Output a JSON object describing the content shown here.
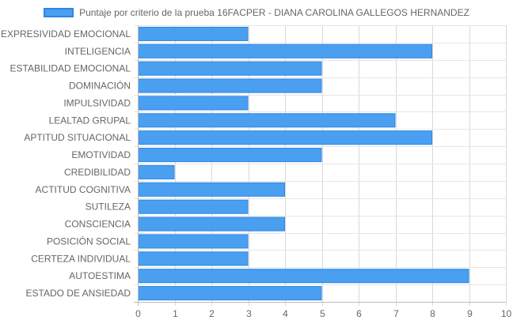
{
  "chart_data": {
    "type": "bar",
    "orientation": "horizontal",
    "categories": [
      "EXPRESIVIDAD EMOCIONAL",
      "INTELIGENCIA",
      "ESTABILIDAD EMOCIONAL",
      "DOMINACIÓN",
      "IMPULSIVIDAD",
      "LEALTAD GRUPAL",
      "APTITUD SITUACIONAL",
      "EMOTIVIDAD",
      "CREDIBILIDAD",
      "ACTITUD COGNITIVA",
      "SUTILEZA",
      "CONSCIENCIA",
      "POSICIÓN SOCIAL",
      "CERTEZA INDIVIDUAL",
      "AUTOESTIMA",
      "ESTADO DE ANSIEDAD"
    ],
    "series": [
      {
        "name": "Puntaje por criterio de la prueba 16FACPER - DIANA CAROLINA GALLEGOS HERNANDEZ",
        "values": [
          3,
          8,
          5,
          5,
          3,
          7,
          8,
          5,
          1,
          4,
          3,
          4,
          3,
          3,
          9,
          5
        ],
        "color": "#4a9ff0",
        "border_color": "#2e86e6"
      }
    ],
    "xlim": [
      0,
      10
    ],
    "x_ticks": [
      "0",
      "1",
      "2",
      "3",
      "4",
      "5",
      "6",
      "7",
      "8",
      "9",
      "10"
    ],
    "grid": true,
    "legend_position": "top"
  }
}
